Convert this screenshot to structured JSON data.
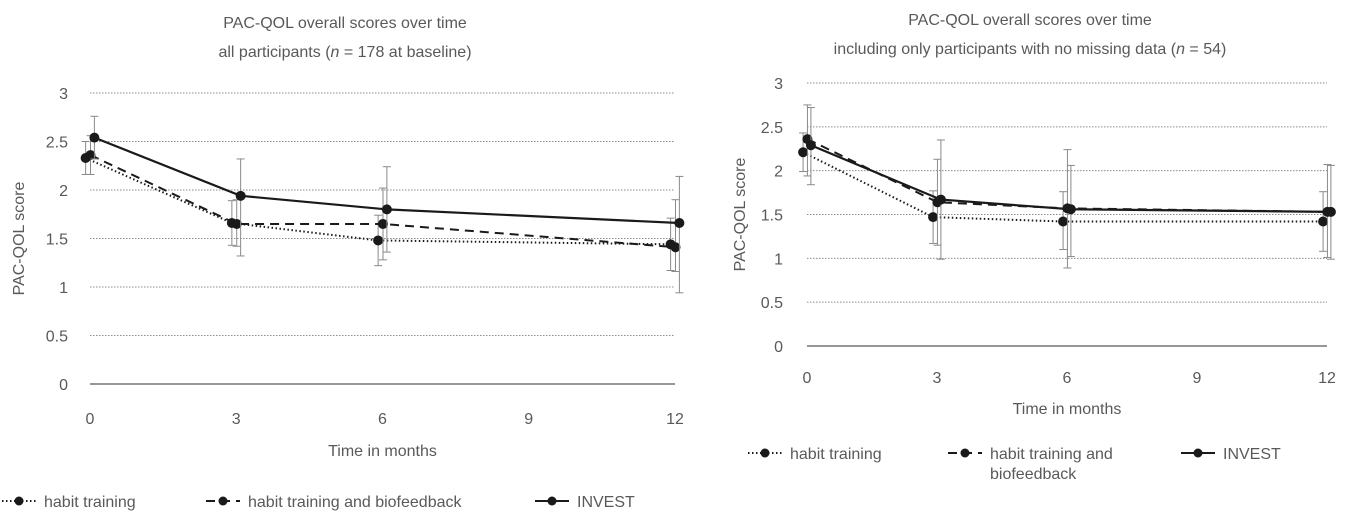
{
  "chart_data": [
    {
      "type": "line",
      "title_line1": "PAC-QOL overall scores over time",
      "title_line2_prefix": "all participants (",
      "title_line2_italic": "n",
      "title_line2_suffix": " = 178 at baseline)",
      "xlabel": "Time in months",
      "ylabel": "PAC-QOL score",
      "xlim": [
        0,
        12
      ],
      "ylim": [
        0,
        3
      ],
      "xticks": [
        "0",
        "3",
        "6",
        "9",
        "12"
      ],
      "yticks": [
        "0",
        "0.5",
        "1",
        "1.5",
        "2",
        "2.5",
        "3"
      ],
      "grid": true,
      "legend_position": "bottom",
      "series": [
        {
          "name": "habit training",
          "style": "dotted",
          "x": [
            0,
            3,
            6,
            12
          ],
          "y": [
            2.33,
            1.66,
            1.48,
            1.44
          ],
          "err_low": [
            2.16,
            1.43,
            1.22,
            1.17
          ],
          "err_high": [
            2.5,
            1.89,
            1.74,
            1.71
          ]
        },
        {
          "name": "habit training and biofeedback",
          "style": "dashed",
          "x": [
            0,
            3,
            6,
            12
          ],
          "y": [
            2.36,
            1.65,
            1.65,
            1.41
          ],
          "err_low": [
            2.16,
            1.42,
            1.28,
            1.16
          ],
          "err_high": [
            2.56,
            1.9,
            2.02,
            1.9
          ]
        },
        {
          "name": "INVEST",
          "style": "solid",
          "x": [
            0,
            3,
            6,
            12
          ],
          "y": [
            2.54,
            1.94,
            1.8,
            1.66
          ],
          "err_low": [
            2.32,
            1.32,
            1.36,
            0.94
          ],
          "err_high": [
            2.76,
            2.32,
            2.24,
            2.14
          ]
        }
      ]
    },
    {
      "type": "line",
      "title_line1": "PAC-QOL overall scores over time",
      "title_line2_prefix": "including only participants with no missing data (",
      "title_line2_italic": "n",
      "title_line2_suffix": " = 54)",
      "xlabel": "Time in months",
      "ylabel": "PAC-QOL score",
      "xlim": [
        0,
        12
      ],
      "ylim": [
        0,
        3
      ],
      "xticks": [
        "0",
        "3",
        "6",
        "9",
        "12"
      ],
      "yticks": [
        "0",
        "0.5",
        "1",
        "1.5",
        "2",
        "2.5",
        "3"
      ],
      "grid": true,
      "legend_position": "bottom",
      "series": [
        {
          "name": "habit training",
          "style": "dotted",
          "x": [
            0,
            3,
            6,
            12
          ],
          "y": [
            2.21,
            1.47,
            1.42,
            1.42
          ],
          "err_low": [
            1.99,
            1.17,
            1.1,
            1.08
          ],
          "err_high": [
            2.43,
            1.77,
            1.76,
            1.76
          ]
        },
        {
          "name": "habit training and biofeedback",
          "style": "dashed",
          "x": [
            0,
            3,
            6,
            12
          ],
          "y": [
            2.36,
            1.64,
            1.57,
            1.53
          ],
          "err_low": [
            1.94,
            1.15,
            0.89,
            1.01
          ],
          "err_high": [
            2.75,
            2.13,
            2.24,
            2.07
          ]
        },
        {
          "name": "INVEST",
          "style": "solid",
          "x": [
            0,
            3,
            6,
            12
          ],
          "y": [
            2.29,
            1.67,
            1.56,
            1.53
          ],
          "err_low": [
            1.84,
            0.99,
            1.02,
            0.99
          ],
          "err_high": [
            2.72,
            2.35,
            2.06,
            2.06
          ]
        }
      ]
    }
  ]
}
